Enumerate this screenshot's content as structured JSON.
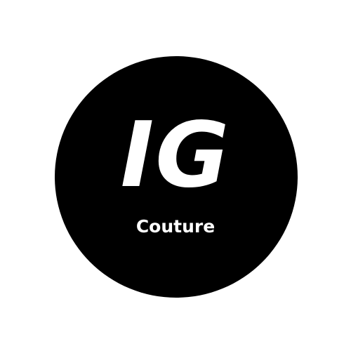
{
  "logo": {
    "monogram": "IG",
    "tagline": "Couture"
  },
  "colors": {
    "background": "#ffffff",
    "disc": "#000000",
    "text": "#ffffff"
  }
}
